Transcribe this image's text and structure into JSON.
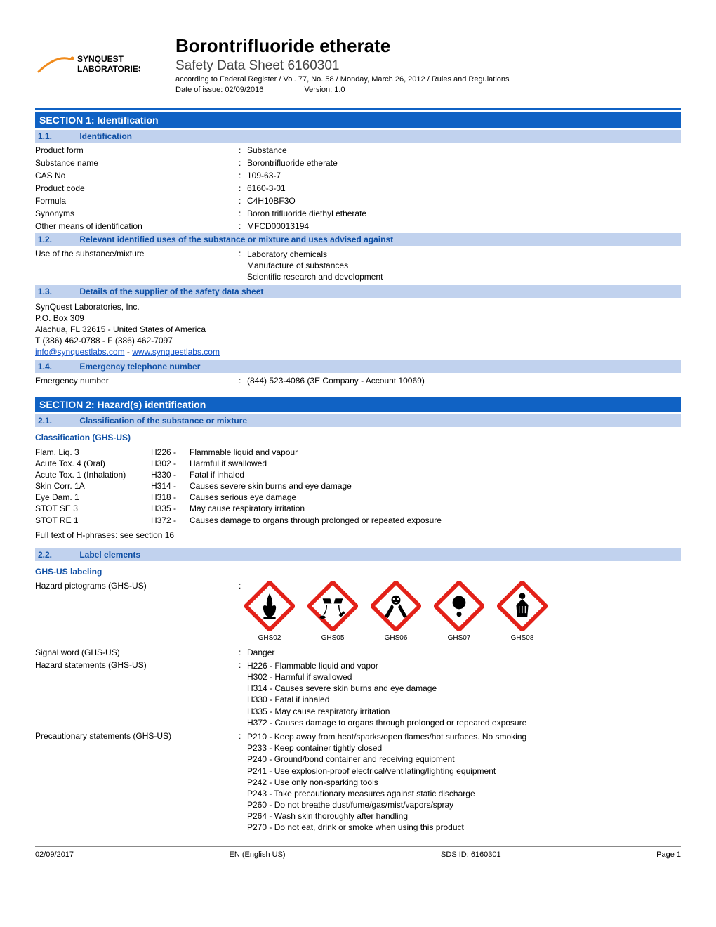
{
  "header": {
    "logo_line1": "SYNQUEST",
    "logo_line2": "LABORATORIES",
    "title": "Borontrifluoride etherate",
    "subtitle": "Safety Data Sheet 6160301",
    "regulation": "according to Federal Register / Vol. 77, No. 58 / Monday, March 26, 2012 / Rules and Regulations",
    "issue_label": "Date of issue: 02/09/2016",
    "version_label": "Version: 1.0"
  },
  "section1": {
    "title": "SECTION 1: Identification",
    "s11_num": "1.1.",
    "s11_label": "Identification",
    "rows": {
      "product_form_l": "Product form",
      "product_form_v": "Substance",
      "substance_name_l": "Substance name",
      "substance_name_v": "Borontrifluoride etherate",
      "cas_l": "CAS No",
      "cas_v": "109-63-7",
      "code_l": "Product code",
      "code_v": "6160-3-01",
      "formula_l": "Formula",
      "formula_v": "C4H10BF3O",
      "syn_l": "Synonyms",
      "syn_v": "Boron trifluoride diethyl etherate",
      "other_l": "Other means of identification",
      "other_v": "MFCD00013194"
    },
    "s12_num": "1.2.",
    "s12_label": "Relevant identified uses of the substance or mixture and uses advised against",
    "use_l": "Use of the substance/mixture",
    "use_v1": "Laboratory chemicals",
    "use_v2": "Manufacture of substances",
    "use_v3": "Scientific research and development",
    "s13_num": "1.3.",
    "s13_label": "Details of the supplier of the safety data sheet",
    "supplier": {
      "l1": "SynQuest Laboratories, Inc.",
      "l2": "P.O. Box 309",
      "l3": "Alachua, FL 32615 - United States of America",
      "l4": "T (386) 462-0788 - F (386) 462-7097",
      "email": "info@synquestlabs.com",
      "sep": " - ",
      "web": "www.synquestlabs.com"
    },
    "s14_num": "1.4.",
    "s14_label": "Emergency telephone number",
    "emergency_l": "Emergency number",
    "emergency_v": "(844) 523-4086 (3E Company - Account 10069)"
  },
  "section2": {
    "title": "SECTION 2: Hazard(s) identification",
    "s21_num": "2.1.",
    "s21_label": "Classification of the substance or mixture",
    "class_heading": "Classification (GHS-US)",
    "classes": [
      {
        "cat": "Flam. Liq. 3",
        "h": "H226 -",
        "desc": "Flammable liquid and vapour"
      },
      {
        "cat": "Acute Tox. 4 (Oral)",
        "h": "H302 -",
        "desc": "Harmful if swallowed"
      },
      {
        "cat": "Acute Tox. 1 (Inhalation)",
        "h": "H330 -",
        "desc": "Fatal if inhaled"
      },
      {
        "cat": "Skin Corr. 1A",
        "h": "H314 -",
        "desc": "Causes severe skin burns and eye damage"
      },
      {
        "cat": "Eye Dam. 1",
        "h": "H318 -",
        "desc": "Causes serious eye damage"
      },
      {
        "cat": "STOT SE 3",
        "h": "H335 -",
        "desc": "May cause respiratory irritation"
      },
      {
        "cat": "STOT RE 1",
        "h": "H372 -",
        "desc": "Causes damage to organs through prolonged or repeated exposure"
      }
    ],
    "fulltext": "Full text of H-phrases: see section 16",
    "s22_num": "2.2.",
    "s22_label": "Label elements",
    "labeling_heading": "GHS-US labeling",
    "picto_l": "Hazard pictograms (GHS-US)",
    "pictos": [
      {
        "code": "GHS02"
      },
      {
        "code": "GHS05"
      },
      {
        "code": "GHS06"
      },
      {
        "code": "GHS07"
      },
      {
        "code": "GHS08"
      }
    ],
    "signal_l": "Signal word (GHS-US)",
    "signal_v": "Danger",
    "hstate_l": "Hazard statements (GHS-US)",
    "hstatements": [
      "H226 - Flammable liquid and vapor",
      "H302 - Harmful if swallowed",
      "H314 - Causes severe skin burns and eye damage",
      "H330 - Fatal if inhaled",
      "H335 - May cause respiratory irritation",
      "H372 - Causes damage to organs through prolonged or repeated exposure"
    ],
    "pstate_l": "Precautionary statements (GHS-US)",
    "pstatements": [
      "P210 - Keep away from heat/sparks/open flames/hot surfaces. No smoking",
      "P233 - Keep container tightly closed",
      "P240 - Ground/bond container and receiving equipment",
      "P241 - Use explosion-proof electrical/ventilating/lighting equipment",
      "P242 - Use only non-sparking tools",
      "P243 - Take precautionary measures against static discharge",
      "P260 - Do not breathe dust/fume/gas/mist/vapors/spray",
      "P264 - Wash skin thoroughly after handling",
      "P270 - Do not eat, drink or smoke when using this product"
    ]
  },
  "footer": {
    "date": "02/09/2017",
    "lang": "EN (English US)",
    "sds": "SDS ID: 6160301",
    "page": "Page 1"
  },
  "colors": {
    "section_bg": "#1062c4",
    "subsection_bg": "#c1d2ee",
    "link": "#1050c8",
    "picto_border": "#e32119"
  }
}
